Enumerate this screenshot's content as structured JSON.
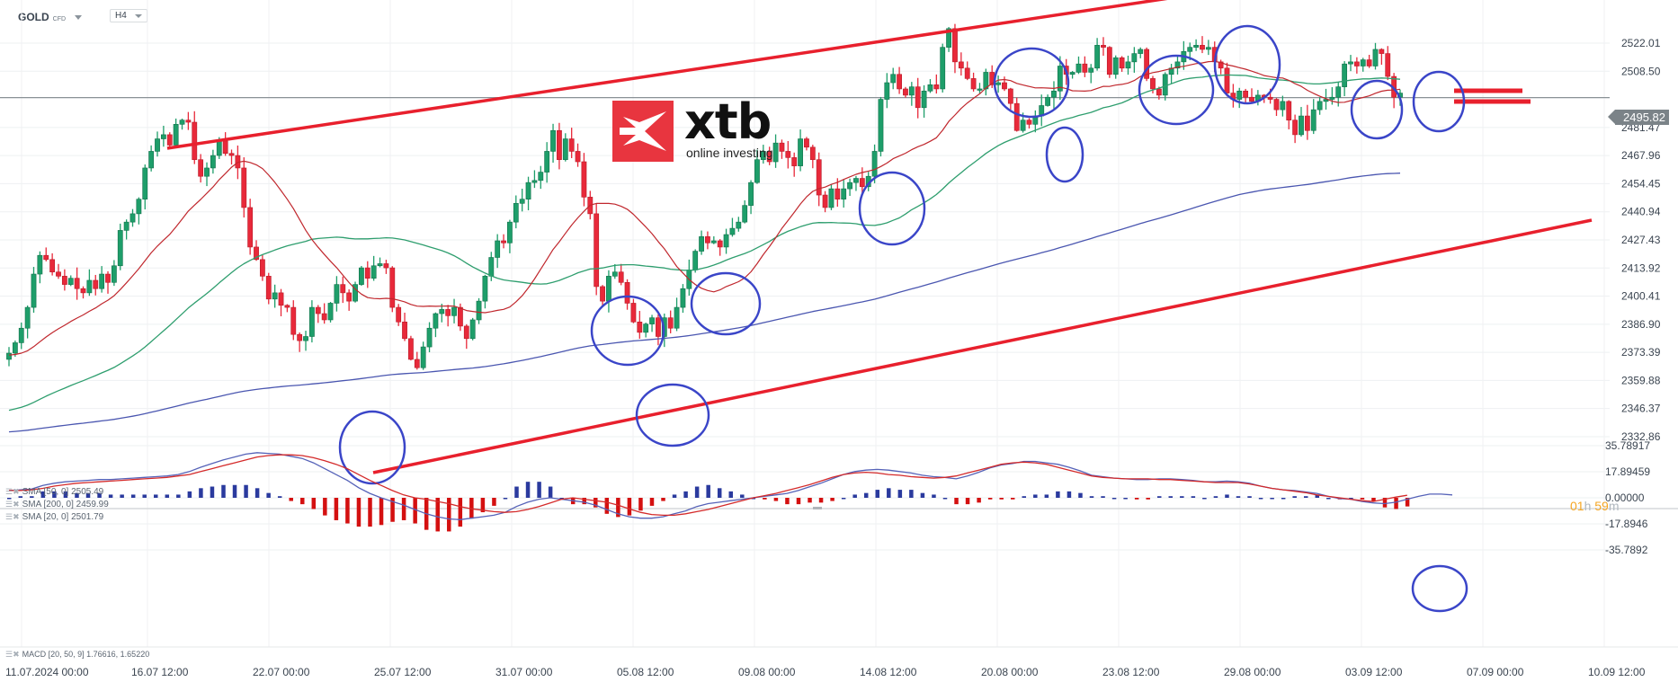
{
  "header": {
    "symbol": "GOLD",
    "symbol_type": "CFD",
    "timeframe": "H4"
  },
  "logo": {
    "brand": "xtb",
    "tagline": "online investing"
  },
  "current_price": "2495.82",
  "countdown": {
    "hours": "01",
    "h_unit": "h",
    "minutes": "59",
    "m_unit": "m"
  },
  "legends": {
    "sma50": "SMA [50, 0] 2505.49",
    "sma200": "SMA [200, 0] 2459.99",
    "sma20": "SMA [20, 0] 2501.79",
    "macd": "MACD [20, 50, 9] 1.76616,  1.65220"
  },
  "colors": {
    "bull": "#1e9e6a",
    "bear": "#e8293a",
    "sma20": "#c0272d",
    "sma50": "#2e9e6e",
    "sma200": "#4a56b0",
    "trendline": "#e8202d",
    "circle": "#3a45c8",
    "macd_line": "#5562b8",
    "signal_line": "#d42a2a",
    "hist_pos": "#2a3a9e",
    "hist_neg": "#d41010"
  },
  "chart_data": [
    {
      "type": "candlestick",
      "title": "GOLD CFD H4",
      "xlabel": "",
      "ylabel": "Price",
      "ylim": [
        2332.86,
        2535.0
      ],
      "grid": true,
      "price_axis_ticks": [
        "2522.01",
        "2508.50",
        "2495.82",
        "2481.47",
        "2467.96",
        "2454.45",
        "2440.94",
        "2427.43",
        "2413.92",
        "2400.41",
        "2386.90",
        "2373.39",
        "2359.88",
        "2346.37",
        "2332.86"
      ],
      "time_axis_ticks": [
        "11.07.2024  00:00",
        "16.07  12:00",
        "22.07  00:00",
        "25.07  12:00",
        "31.07  00:00",
        "05.08  12:00",
        "09.08  00:00",
        "14.08  12:00",
        "20.08  00:00",
        "23.08  12:00",
        "29.08  00:00",
        "03.09  12:00",
        "07.09  00:00",
        "10.09  12:00"
      ],
      "time_axis_x": [
        8,
        148,
        283,
        418,
        553,
        688,
        823,
        958,
        1093,
        1228,
        1363,
        1498,
        1633,
        1768
      ],
      "close_path": [
        2373,
        2378,
        2385,
        2395,
        2411,
        2420,
        2418,
        2412,
        2410,
        2406,
        2409,
        2404,
        2402,
        2408,
        2404,
        2411,
        2407,
        2415,
        2432,
        2436,
        2440,
        2447,
        2462,
        2470,
        2476,
        2478,
        2473,
        2483,
        2485,
        2484,
        2466,
        2458,
        2462,
        2468,
        2475,
        2469,
        2468,
        2462,
        2443,
        2424,
        2418,
        2410,
        2399,
        2402,
        2396,
        2395,
        2382,
        2379,
        2381,
        2395,
        2392,
        2389,
        2397,
        2406,
        2402,
        2398,
        2406,
        2414,
        2409,
        2415,
        2416,
        2414,
        2395,
        2388,
        2380,
        2370,
        2366,
        2376,
        2385,
        2392,
        2394,
        2391,
        2395,
        2386,
        2380,
        2389,
        2398,
        2410,
        2419,
        2427,
        2426,
        2436,
        2445,
        2447,
        2455,
        2456,
        2460,
        2470,
        2480,
        2466,
        2476,
        2470,
        2465,
        2448,
        2440,
        2405,
        2398,
        2410,
        2412,
        2407,
        2397,
        2388,
        2383,
        2387,
        2390,
        2381,
        2390,
        2385,
        2395,
        2404,
        2413,
        2422,
        2429,
        2426,
        2427,
        2424,
        2430,
        2433,
        2436,
        2444,
        2455,
        2466,
        2470,
        2465,
        2474,
        2470,
        2467,
        2463,
        2476,
        2472,
        2466,
        2449,
        2443,
        2452,
        2447,
        2452,
        2455,
        2457,
        2453,
        2458,
        2470,
        2495,
        2503,
        2507,
        2500,
        2497,
        2501,
        2491,
        2499,
        2502,
        2500,
        2520,
        2529,
        2513,
        2510,
        2505,
        2500,
        2500,
        2508,
        2502,
        2503,
        2500,
        2493,
        2480,
        2485,
        2483,
        2487,
        2492,
        2496,
        2499,
        2511,
        2507,
        2508,
        2512,
        2508,
        2510,
        2521,
        2520,
        2507,
        2515,
        2510,
        2513,
        2517,
        2519,
        2505,
        2500,
        2497,
        2507,
        2510,
        2513,
        2518,
        2520,
        2521,
        2519,
        2520,
        2513,
        2510,
        2498,
        2495,
        2499,
        2496,
        2494,
        2497,
        2496,
        2495,
        2490,
        2494,
        2485,
        2478,
        2487,
        2480,
        2490,
        2494,
        2495,
        2496,
        2501,
        2512,
        2513,
        2511,
        2514,
        2511,
        2519,
        2517,
        2506,
        2496,
        2498
      ],
      "series": [
        {
          "name": "SMA 20",
          "last": 2501.79
        },
        {
          "name": "SMA 50",
          "last": 2505.49
        },
        {
          "name": "SMA 200",
          "last": 2459.99
        }
      ],
      "annotations": {
        "upper_trendline": {
          "from": [
            2483,
            "16.07"
          ],
          "to": [
            2535,
            "23.08"
          ]
        },
        "lower_trendline": {
          "from": [
            2362,
            "25.07"
          ],
          "to": [
            2452,
            "10.09"
          ]
        },
        "resistance_marks": [
          2508,
          2503
        ],
        "circles": 13
      }
    },
    {
      "type": "bar+line",
      "title": "MACD [20, 50, 9]",
      "ylim": [
        -35.7892,
        35.78917
      ],
      "value_axis_ticks": [
        "35.78917",
        "17.89459",
        "0.00000",
        "-17.8946",
        "-35.7892"
      ],
      "series": [
        {
          "name": "MACD",
          "last": 1.76616
        },
        {
          "name": "Signal",
          "last": 1.6522
        }
      ],
      "macd_path": [
        5,
        5.5,
        6,
        8.5,
        10,
        11,
        11.5,
        12,
        12.5,
        12.5,
        13,
        13.5,
        14,
        14.5,
        15,
        16,
        18,
        21,
        23.5,
        26,
        28,
        30,
        31,
        30.5,
        30,
        28.5,
        27,
        24,
        20,
        16,
        12,
        7,
        3,
        0,
        -2.5,
        -5,
        -8,
        -11,
        -13,
        -14.5,
        -15,
        -14,
        -13,
        -12,
        -10,
        -6,
        -3,
        -1,
        0,
        -1,
        -2,
        -3,
        -5,
        -8,
        -11,
        -13,
        -14,
        -14,
        -13,
        -11,
        -9,
        -6,
        -4,
        -3,
        -2,
        -1,
        0,
        1,
        2,
        3,
        5,
        7.5,
        10,
        13,
        16,
        18,
        19,
        19.5,
        19,
        18,
        17,
        15.5,
        14.5,
        14,
        13,
        15,
        17.5,
        20.5,
        22.5,
        23.5,
        25,
        25,
        24,
        23,
        21,
        18.5,
        15.5,
        14.5,
        13.5,
        13,
        12.5,
        12.5,
        13,
        13,
        12.5,
        12,
        11,
        11,
        11.5,
        11,
        10,
        8,
        6.5,
        5.5,
        5,
        4,
        3,
        1,
        -0.5,
        -1,
        -2.5,
        -3.5,
        -4,
        -3,
        -1,
        1,
        2.5,
        2.5,
        2
      ],
      "signal_path": [
        5,
        5,
        5.5,
        6.5,
        8,
        9,
        10,
        10.5,
        11,
        11.5,
        12,
        12.5,
        13,
        13.5,
        14,
        15,
        16,
        18,
        20,
        22,
        24,
        26,
        28,
        29,
        29.5,
        29.5,
        29,
        27.5,
        25.5,
        23,
        20,
        16,
        12,
        8.5,
        5,
        2,
        0,
        -1,
        -2.5,
        -4,
        -6,
        -7.5,
        -8.5,
        -9.5,
        -10,
        -9.5,
        -8,
        -6,
        -3.5,
        -1,
        0,
        -1,
        -2,
        -3,
        -5,
        -7.5,
        -10,
        -11.5,
        -12,
        -12,
        -11,
        -9.5,
        -8,
        -6,
        -4,
        -2,
        0,
        1.5,
        3,
        5,
        7,
        9,
        11.5,
        14,
        16,
        17,
        17.5,
        17,
        16,
        15.5,
        14.5,
        14,
        13.5,
        14,
        15,
        17,
        19,
        21,
        23,
        24,
        24.5,
        24,
        23,
        21,
        19,
        17,
        15,
        14,
        13.5,
        13,
        13,
        13,
        12.5,
        12.5,
        12,
        11.5,
        11,
        10.5,
        10.5,
        10.5,
        9.5,
        8,
        6.5,
        5.5,
        4.5,
        3.5,
        2,
        1,
        0,
        -1,
        -2,
        -2.5,
        -1,
        0.5,
        1.7
      ]
    }
  ]
}
